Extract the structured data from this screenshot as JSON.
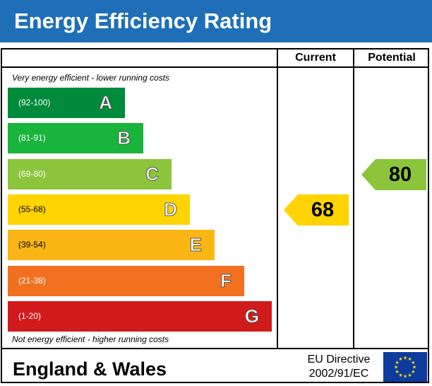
{
  "title": "Energy Efficiency Rating",
  "columns": {
    "current": "Current",
    "potential": "Potential"
  },
  "top_caption": "Very energy efficient - lower running costs",
  "bottom_caption": "Not energy efficient - higher running costs",
  "region": "England & Wales",
  "directive": {
    "line1": "EU Directive",
    "line2": "2002/91/EC"
  },
  "colors": {
    "title_bar": "#1f6fb8",
    "A": "#008a3c",
    "B": "#19b43c",
    "C": "#8cc43c",
    "D": "#ffd400",
    "E": "#fbb615",
    "F": "#f37021",
    "G": "#d11b1b",
    "eu_flag": "#0d3b9e",
    "eu_star": "#ffdd00"
  },
  "chart_data": {
    "type": "bar",
    "categories": [
      "A",
      "B",
      "C",
      "D",
      "E",
      "F",
      "G"
    ],
    "ranges": [
      "(92-100)",
      "(81-91)",
      "(69-80)",
      "(55-68)",
      "(39-54)",
      "(21-38)",
      "(1-20)"
    ],
    "current": {
      "value": 68,
      "band": "D"
    },
    "potential": {
      "value": 80,
      "band": "C"
    }
  }
}
